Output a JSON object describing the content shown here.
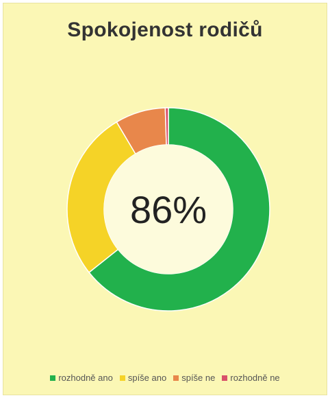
{
  "chart_data": {
    "type": "pie",
    "title": "Spokojenost rodičů",
    "center_label": "86%",
    "legend_position": "bottom",
    "slices": [
      {
        "name": "rozhodně ano",
        "value": 64,
        "color": "#22b14c"
      },
      {
        "name": "spíše ano",
        "value": 27,
        "color": "#f5d327"
      },
      {
        "name": "spíše ne",
        "value": 8,
        "color": "#e8874b"
      },
      {
        "name": "rozhodně ne",
        "value": 0.5,
        "color": "#d9516a"
      }
    ]
  }
}
